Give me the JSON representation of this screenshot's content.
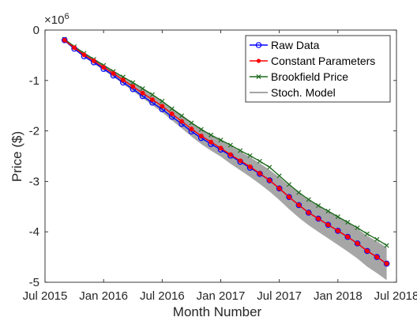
{
  "chart_data": {
    "type": "line",
    "xlabel": "Month Number",
    "ylabel": "Price ($)",
    "y_exponent_label": "×10",
    "y_exponent_power": "6",
    "x_ticks": [
      "Jul 2015",
      "Jan 2016",
      "Jul 2016",
      "Jan 2017",
      "Jul 2017",
      "Jan 2018",
      "Jul 2018"
    ],
    "y_ticks": [
      "0",
      "-1",
      "-2",
      "-3",
      "-4",
      "-5"
    ],
    "xlim_months": [
      0,
      36
    ],
    "ylim": [
      -5,
      0
    ],
    "legend_position": "top-right",
    "series": [
      {
        "name": "Raw Data",
        "color": "#0000ff",
        "marker": "circle",
        "x": [
          2,
          3,
          4,
          5,
          6,
          7,
          8,
          9,
          10,
          11,
          12,
          13,
          14,
          15,
          16,
          17,
          18,
          19,
          20,
          21,
          22,
          23,
          24,
          25,
          26,
          27,
          28,
          29,
          30,
          31,
          32,
          33,
          34,
          35
        ],
        "y": [
          -0.2,
          -0.37,
          -0.52,
          -0.64,
          -0.77,
          -0.9,
          -1.04,
          -1.17,
          -1.31,
          -1.44,
          -1.57,
          -1.72,
          -1.86,
          -2.01,
          -2.14,
          -2.26,
          -2.37,
          -2.49,
          -2.61,
          -2.73,
          -2.85,
          -2.98,
          -3.14,
          -3.31,
          -3.47,
          -3.62,
          -3.74,
          -3.86,
          -3.98,
          -4.1,
          -4.23,
          -4.38,
          -4.5,
          -4.63
        ]
      },
      {
        "name": "Constant Parameters",
        "color": "#ff0000",
        "marker": "dot",
        "x": [
          2,
          3,
          4,
          5,
          6,
          7,
          8,
          9,
          10,
          11,
          12,
          13,
          14,
          15,
          16,
          17,
          18,
          19,
          20,
          21,
          22,
          23,
          24,
          25,
          26,
          27,
          28,
          29,
          30,
          31,
          32,
          33,
          34,
          35
        ],
        "y": [
          -0.2,
          -0.35,
          -0.49,
          -0.61,
          -0.74,
          -0.86,
          -0.99,
          -1.12,
          -1.25,
          -1.38,
          -1.51,
          -1.66,
          -1.81,
          -1.96,
          -2.1,
          -2.22,
          -2.34,
          -2.47,
          -2.59,
          -2.71,
          -2.84,
          -2.98,
          -3.14,
          -3.31,
          -3.47,
          -3.62,
          -3.74,
          -3.86,
          -3.98,
          -4.1,
          -4.23,
          -4.38,
          -4.5,
          -4.63
        ]
      },
      {
        "name": "Brookfield Price",
        "color": "#1e6b1e",
        "marker": "x",
        "x": [
          2,
          3,
          4,
          5,
          6,
          7,
          8,
          9,
          10,
          11,
          12,
          13,
          14,
          15,
          16,
          17,
          18,
          19,
          20,
          21,
          22,
          23,
          24,
          25,
          26,
          27,
          28,
          29,
          30,
          31,
          32,
          33,
          34,
          35
        ],
        "y": [
          -0.18,
          -0.33,
          -0.46,
          -0.58,
          -0.7,
          -0.82,
          -0.93,
          -1.04,
          -1.16,
          -1.28,
          -1.41,
          -1.56,
          -1.7,
          -1.84,
          -1.97,
          -2.08,
          -2.18,
          -2.28,
          -2.39,
          -2.49,
          -2.6,
          -2.72,
          -2.89,
          -3.06,
          -3.22,
          -3.36,
          -3.48,
          -3.59,
          -3.7,
          -3.81,
          -3.92,
          -4.04,
          -4.15,
          -4.27
        ]
      },
      {
        "name": "Stoch. Model",
        "color": "#a6a6a6",
        "marker": "band",
        "x": [
          2,
          3,
          4,
          5,
          6,
          7,
          8,
          9,
          10,
          11,
          12,
          13,
          14,
          15,
          16,
          17,
          18,
          19,
          20,
          21,
          22,
          23,
          24,
          25,
          26,
          27,
          28,
          29,
          30,
          31,
          32,
          33,
          34,
          35
        ],
        "y_upper": [
          -0.17,
          -0.31,
          -0.44,
          -0.56,
          -0.68,
          -0.8,
          -0.92,
          -1.04,
          -1.16,
          -1.28,
          -1.4,
          -1.54,
          -1.68,
          -1.82,
          -1.95,
          -2.07,
          -2.18,
          -2.3,
          -2.41,
          -2.52,
          -2.64,
          -2.77,
          -2.92,
          -3.08,
          -3.23,
          -3.38,
          -3.49,
          -3.6,
          -3.71,
          -3.82,
          -3.94,
          -4.08,
          -4.19,
          -4.31
        ],
        "y_lower": [
          -0.23,
          -0.39,
          -0.54,
          -0.67,
          -0.8,
          -0.93,
          -1.07,
          -1.21,
          -1.35,
          -1.49,
          -1.63,
          -1.79,
          -1.95,
          -2.11,
          -2.26,
          -2.39,
          -2.51,
          -2.65,
          -2.78,
          -2.91,
          -3.05,
          -3.2,
          -3.37,
          -3.55,
          -3.72,
          -3.87,
          -4.0,
          -4.13,
          -4.26,
          -4.39,
          -4.53,
          -4.69,
          -4.82,
          -4.96
        ]
      }
    ]
  }
}
